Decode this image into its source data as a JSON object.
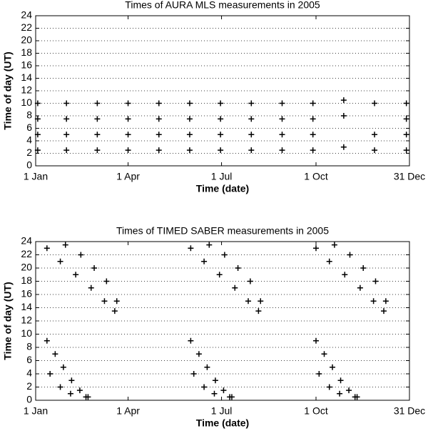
{
  "chart_data": [
    {
      "type": "scatter",
      "title": "Times of AURA MLS measurements in 2005",
      "xlabel": "Time (date)",
      "ylabel": "Time of day (UT)",
      "color": "#000000",
      "marker": "+",
      "grid": true,
      "xlim": [
        1,
        365
      ],
      "ylim": [
        0,
        24
      ],
      "xticks": [
        {
          "value": 1,
          "label": "1 Jan"
        },
        {
          "value": 91,
          "label": "1 Apr"
        },
        {
          "value": 182,
          "label": "1 Jul"
        },
        {
          "value": 274,
          "label": "1 Oct"
        },
        {
          "value": 365,
          "label": "31 Dec"
        }
      ],
      "yticks": [
        0,
        2,
        4,
        6,
        8,
        10,
        12,
        14,
        16,
        18,
        20,
        22,
        24
      ],
      "x": [
        3,
        3,
        3,
        3,
        31,
        31,
        31,
        31,
        61,
        61,
        61,
        61,
        91,
        91,
        91,
        91,
        121,
        121,
        121,
        121,
        151,
        151,
        151,
        151,
        181,
        181,
        181,
        181,
        211,
        211,
        211,
        211,
        241,
        241,
        241,
        241,
        271,
        271,
        271,
        271,
        301,
        301,
        301,
        331,
        331,
        331,
        362,
        362,
        362,
        362
      ],
      "y": [
        2.5,
        5,
        7.5,
        10,
        2.5,
        5,
        7.5,
        10,
        2.5,
        5,
        7.5,
        10,
        2.5,
        5,
        7.5,
        10,
        2.5,
        5,
        7.5,
        10,
        2.5,
        5,
        7.5,
        10,
        2.5,
        5,
        7.5,
        10,
        2.5,
        5,
        7.5,
        10,
        2.5,
        5,
        7.5,
        10,
        2.5,
        5,
        7.5,
        10,
        3,
        8,
        10.5,
        2.5,
        5,
        10,
        2.5,
        5,
        7.5,
        10
      ]
    },
    {
      "type": "scatter",
      "title": "Times of TIMED SABER measurements in 2005",
      "xlabel": "Time (date)",
      "ylabel": "Time of day (UT)",
      "color": "#000000",
      "marker": "+",
      "grid": true,
      "xlim": [
        1,
        365
      ],
      "ylim": [
        0,
        24
      ],
      "xticks": [
        {
          "value": 1,
          "label": "1 Jan"
        },
        {
          "value": 91,
          "label": "1 Apr"
        },
        {
          "value": 182,
          "label": "1 Jul"
        },
        {
          "value": 274,
          "label": "1 Oct"
        },
        {
          "value": 365,
          "label": "31 Dec"
        }
      ],
      "yticks": [
        0,
        2,
        4,
        6,
        8,
        10,
        12,
        14,
        16,
        18,
        20,
        22,
        24
      ],
      "x": [
        12,
        25,
        40,
        55,
        68,
        78,
        30,
        45,
        58,
        70,
        80,
        12,
        20,
        28,
        36,
        44,
        52,
        15,
        25,
        35,
        50,
        152,
        165,
        180,
        195,
        208,
        218,
        170,
        185,
        198,
        210,
        220,
        152,
        160,
        168,
        176,
        184,
        192,
        155,
        165,
        175,
        190,
        274,
        287,
        302,
        317,
        330,
        340,
        292,
        307,
        320,
        332,
        342,
        274,
        282,
        290,
        298,
        306,
        314,
        277,
        287,
        297,
        312
      ],
      "y": [
        23,
        21,
        19,
        17,
        15,
        13.5,
        23.5,
        22,
        20,
        18,
        15,
        9,
        7,
        5,
        3,
        1.5,
        0.5,
        4,
        2,
        1,
        0.5,
        23,
        21,
        19,
        17,
        15,
        13.5,
        23.5,
        22,
        20,
        18,
        15,
        9,
        7,
        5,
        3,
        1.5,
        0.5,
        4,
        2,
        1,
        0.5,
        23,
        21,
        19,
        17,
        15,
        13.5,
        23.5,
        22,
        20,
        18,
        15,
        9,
        7,
        5,
        3,
        1.5,
        0.5,
        4,
        2,
        1,
        0.5
      ]
    }
  ]
}
